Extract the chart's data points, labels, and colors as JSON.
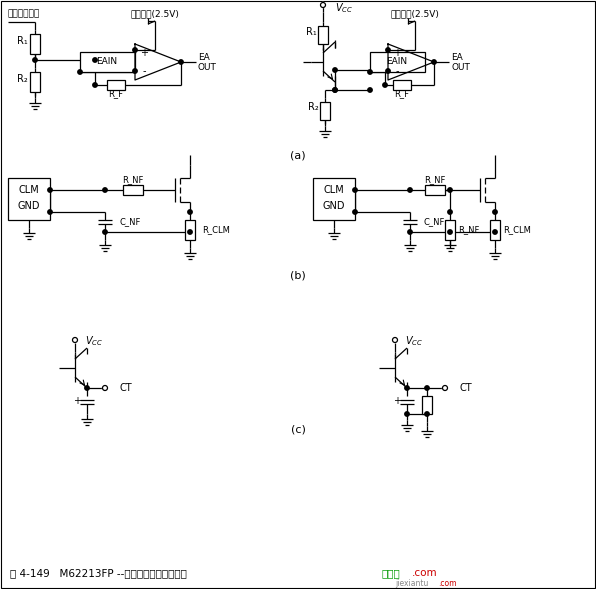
{
  "bg_color": "#ffffff",
  "fig_width": 5.96,
  "fig_height": 5.89,
  "line_color": "#000000",
  "title_text": "图 4-149   M62213FP --些端子的连接方式电路",
  "title_green": "接线图",
  "title_red": ".com",
  "watermark": "jiexiantu",
  "label_a": "(a)",
  "label_b": "(b)",
  "label_c": "(c)"
}
